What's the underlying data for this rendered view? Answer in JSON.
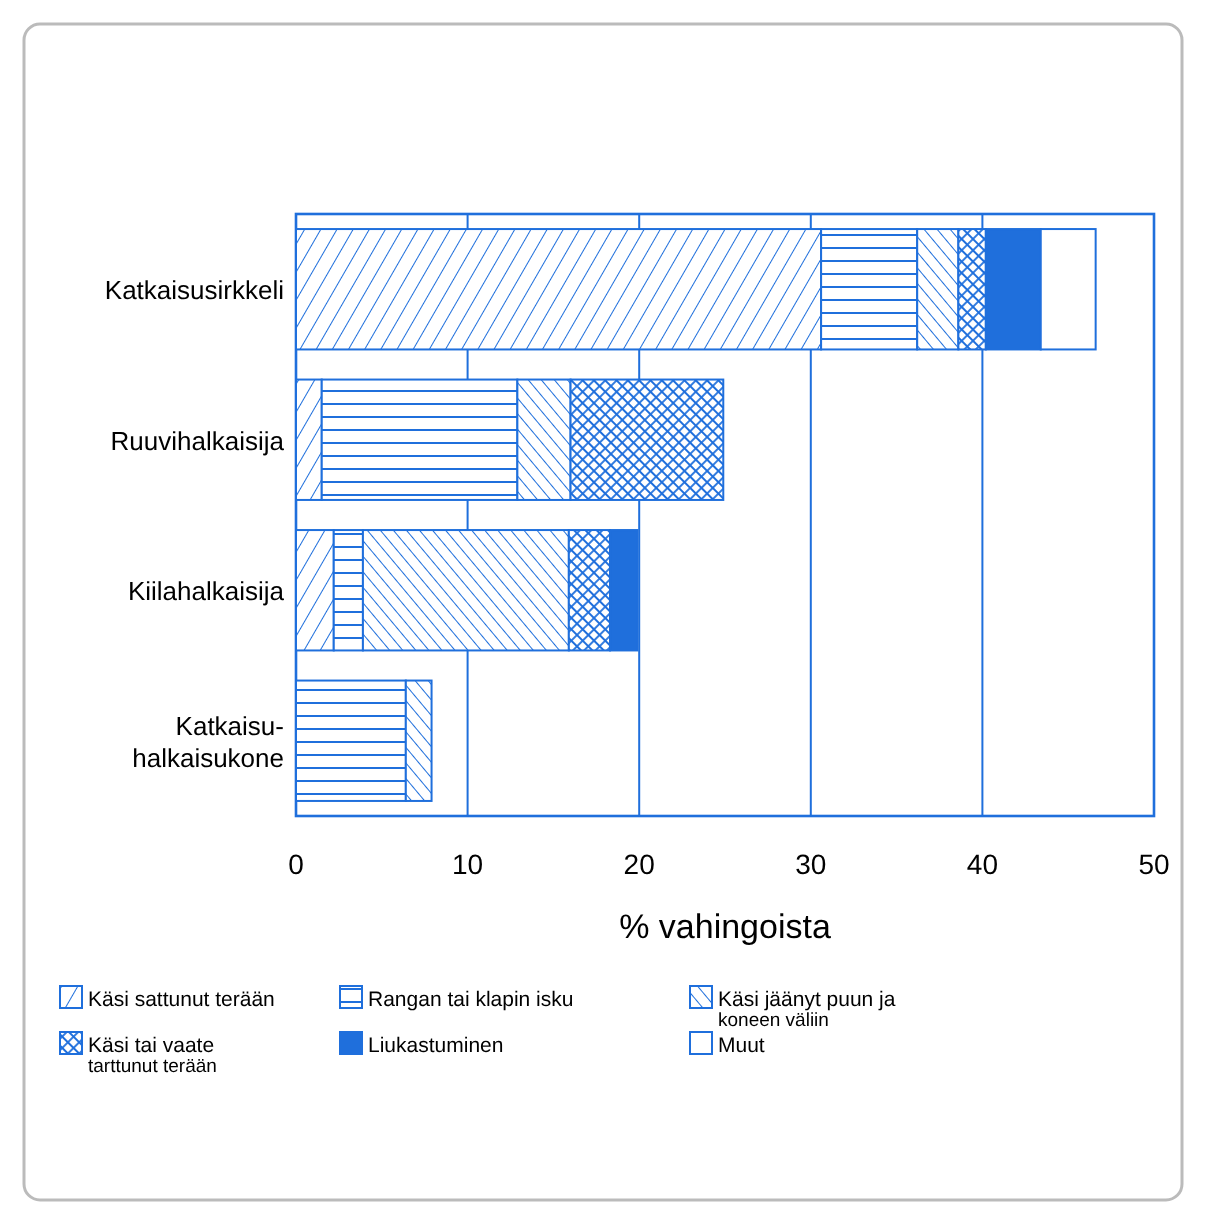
{
  "chart_data": {
    "type": "bar",
    "orientation": "horizontal",
    "stacked": true,
    "categories": [
      "Katkaisusirkkeli",
      "Ruuvihalkaisija",
      "Kiilahalkaisija",
      "Katkaisu-halkaisukone"
    ],
    "series": [
      {
        "name": "Käsi sattunut terään",
        "color": "#1f6fdc",
        "values": [
          30.6,
          1.5,
          2.2,
          null
        ]
      },
      {
        "name": "Rangan tai klapin isku",
        "color": "#1f6fdc",
        "values": [
          5.6,
          11.4,
          1.7,
          6.4
        ]
      },
      {
        "name": "Käsi jäänyt puun ja koneen väliin",
        "color": "#1f6fdc",
        "values": [
          2.4,
          3.1,
          12.0,
          1.5
        ]
      },
      {
        "name": "Käsi tai vaate tarttunut terään",
        "color": "#1f6fdc",
        "values": [
          1.6,
          8.9,
          2.4,
          null
        ]
      },
      {
        "name": "Liukastuminen",
        "color": "#1f6fdc",
        "values": [
          3.2,
          null,
          1.6,
          null
        ]
      },
      {
        "name": "Muut",
        "color": "#ffffff",
        "values": [
          3.2,
          null,
          null,
          null
        ]
      }
    ],
    "xlim": [
      0,
      50
    ],
    "xticks": [
      0,
      10,
      20,
      30,
      40,
      50
    ],
    "xlabel": "% vahingoista",
    "grid": "x",
    "legend": "bottom"
  }
}
